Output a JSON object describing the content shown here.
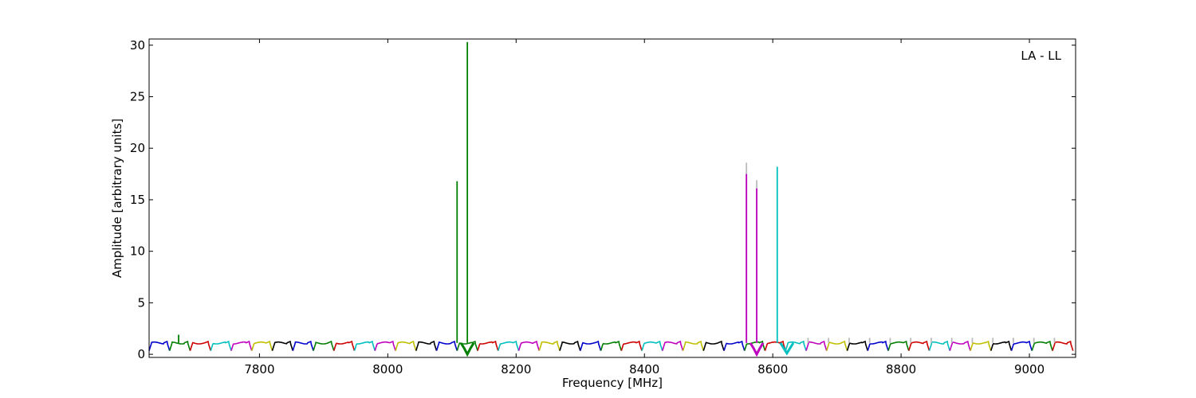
{
  "chart_data": {
    "type": "line",
    "annotation": "LA - LL",
    "xlabel": "Frequency [MHz]",
    "ylabel": "Amplitude [arbitrary units]",
    "xlim": [
      7628,
      9072
    ],
    "ylim": [
      -0.3,
      30.6
    ],
    "x_ticks": [
      7800,
      8000,
      8200,
      8400,
      8600,
      8800,
      9000
    ],
    "y_ticks": [
      0,
      5,
      10,
      15,
      20,
      25,
      30
    ],
    "grid": false,
    "band_start": 7628,
    "band_width": 32,
    "band_count": 45,
    "band_baseline": 1.1,
    "band_colors": [
      "#0000cc",
      "#007f00",
      "#cc0000",
      "#00bfbf",
      "#bf00bf",
      "#bfbf00",
      "#000000"
    ],
    "spikes": [
      {
        "x": 7674,
        "y": 1.9,
        "color": "#007f00"
      },
      {
        "x": 8108,
        "y": 16.8,
        "color": "#007f00"
      },
      {
        "x": 8124,
        "y": 30.3,
        "color": "#007f00"
      },
      {
        "x": 8559,
        "y": 18.6,
        "color": "#bbbbbb"
      },
      {
        "x": 8559,
        "y": 17.5,
        "color": "#bf00bf"
      },
      {
        "x": 8575,
        "y": 16.9,
        "color": "#bbbbbb"
      },
      {
        "x": 8575,
        "y": 16.1,
        "color": "#bf00bf"
      },
      {
        "x": 8607,
        "y": 18.2,
        "color": "#00bfbf"
      },
      {
        "x": 8655,
        "y": 1.6,
        "color": "#bbbbbb"
      },
      {
        "x": 8687,
        "y": 1.6,
        "color": "#bbbbbb"
      },
      {
        "x": 8719,
        "y": 1.6,
        "color": "#bbbbbb"
      },
      {
        "x": 8751,
        "y": 1.6,
        "color": "#bbbbbb"
      },
      {
        "x": 8783,
        "y": 1.6,
        "color": "#bbbbbb"
      },
      {
        "x": 8815,
        "y": 1.6,
        "color": "#bbbbbb"
      },
      {
        "x": 8847,
        "y": 1.6,
        "color": "#bbbbbb"
      },
      {
        "x": 8879,
        "y": 1.6,
        "color": "#bbbbbb"
      },
      {
        "x": 8911,
        "y": 1.6,
        "color": "#bbbbbb"
      },
      {
        "x": 8943,
        "y": 1.6,
        "color": "#bbbbbb"
      },
      {
        "x": 8975,
        "y": 1.6,
        "color": "#bbbbbb"
      },
      {
        "x": 9007,
        "y": 1.6,
        "color": "#bbbbbb"
      },
      {
        "x": 9039,
        "y": 1.6,
        "color": "#bbbbbb"
      }
    ],
    "dips": [
      {
        "x": 8124,
        "y": 0.0,
        "color": "#007f00"
      },
      {
        "x": 8575,
        "y": 0.0,
        "color": "#bf00bf"
      },
      {
        "x": 8622,
        "y": 0.1,
        "color": "#00bfbf"
      }
    ]
  }
}
